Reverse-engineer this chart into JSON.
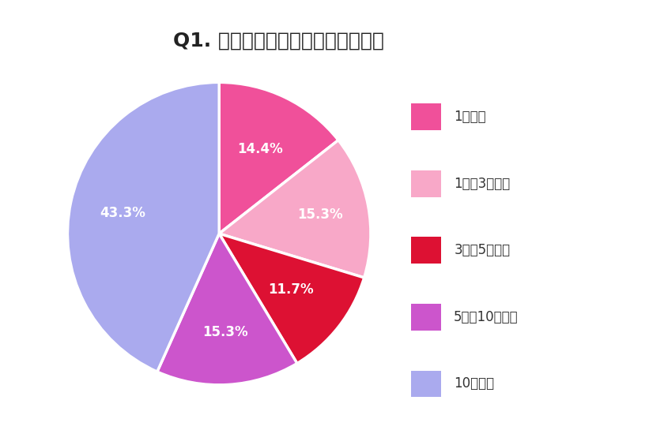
{
  "title": "Q1. ゴルフ歴はどのくらいですか？",
  "slices": [
    14.4,
    15.3,
    11.7,
    15.3,
    43.3
  ],
  "labels": [
    "1年未満",
    "1年～3年未満",
    "3年～5年未満",
    "5年～10年未満",
    "10年以上"
  ],
  "colors": [
    "#F0509A",
    "#F8A8C8",
    "#DD1133",
    "#CC55CC",
    "#AAAAEE"
  ],
  "pct_labels": [
    "14.4%",
    "15.3%",
    "11.7%",
    "15.3%",
    "43.3%"
  ],
  "start_angle": 90,
  "background_color": "#FFFFFF",
  "title_fontsize": 18,
  "legend_fontsize": 12,
  "pct_fontsize": 12
}
